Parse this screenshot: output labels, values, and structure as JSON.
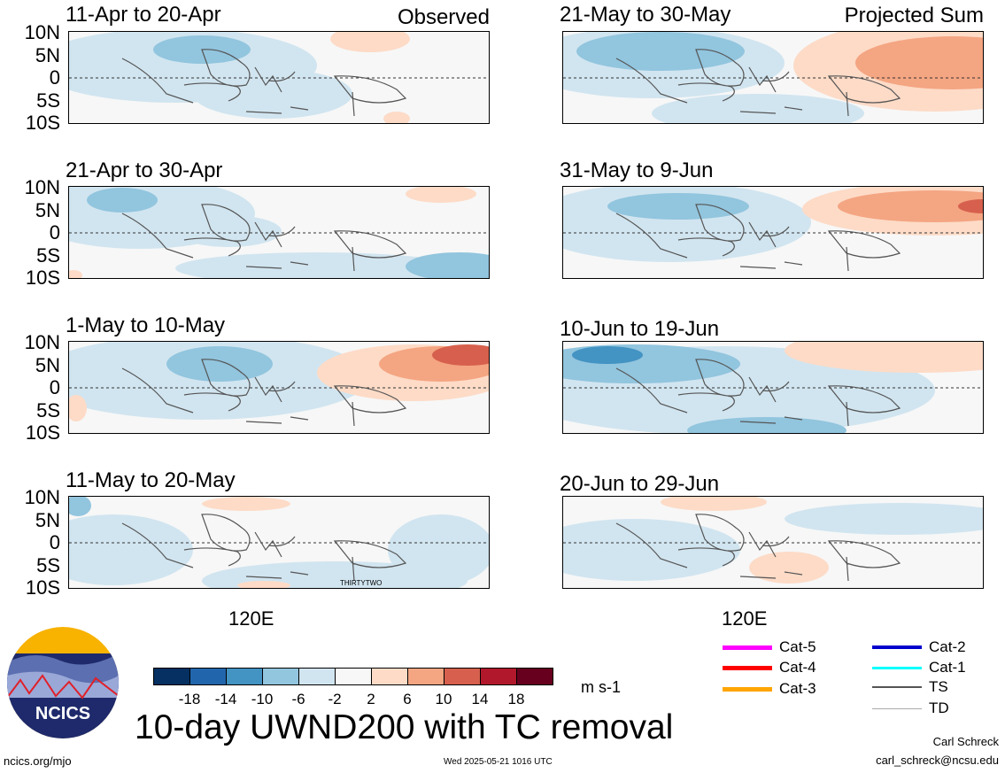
{
  "headers": {
    "left": "Observed",
    "right": "Projected Sum"
  },
  "lat_labels": [
    "10N",
    "5N",
    "0",
    "5S",
    "10S"
  ],
  "panels": [
    {
      "title": "11-Apr to 20-Apr"
    },
    {
      "title": "21-May to 30-May"
    },
    {
      "title": "21-Apr to 30-Apr"
    },
    {
      "title": "31-May to 9-Jun"
    },
    {
      "title": "1-May to 10-May"
    },
    {
      "title": "10-Jun to 19-Jun"
    },
    {
      "title": "11-May to 20-May"
    },
    {
      "title": "20-Jun to 29-Jun"
    }
  ],
  "storm_label": "THIRTYTWO",
  "x_axis_label": "120E",
  "colorbar": {
    "colors": [
      "#053061",
      "#2166ac",
      "#4393c3",
      "#92c5de",
      "#d1e5f0",
      "#f7f7f7",
      "#fddbc7",
      "#f4a582",
      "#d6604d",
      "#b2182b",
      "#67001f"
    ],
    "ticks": [
      "-18",
      "-14",
      "-10",
      "-6",
      "-2",
      "2",
      "6",
      "10",
      "14",
      "18"
    ],
    "units": "m s-1"
  },
  "legend": [
    {
      "label": "Cat-5",
      "color": "#ff00ff"
    },
    {
      "label": "Cat-4",
      "color": "#ff0000"
    },
    {
      "label": "Cat-3",
      "color": "#ffa500"
    },
    {
      "label": "Cat-2",
      "color": "#0000cd"
    },
    {
      "label": "Cat-1",
      "color": "#00ffff"
    },
    {
      "label": "TS",
      "color": "#555555"
    },
    {
      "label": "TD",
      "color": "#aaaaaa"
    }
  ],
  "logo_text": "NCICS",
  "main_title": "10-day UWND200 with TC removal",
  "footer": {
    "url": "ncics.org/mjo",
    "timestamp": "Wed 2025-05-21 1016 UTC",
    "author": "Carl Schreck",
    "email": "carl_schreck@ncsu.edu"
  }
}
